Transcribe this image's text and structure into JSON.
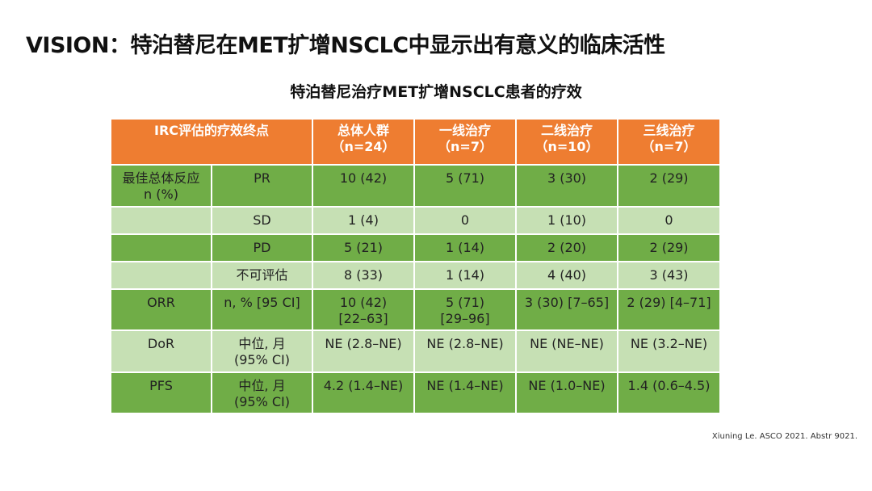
{
  "title": "VISION：特泊替尼在MET扩增NSCLC中显示出有意义的临床活性",
  "table_title": "特泊替尼治疗MET扩增NSCLC患者的疗效",
  "header": {
    "endpoint": "IRC评估的疗效终点",
    "columns": [
      {
        "line1": "总体人群",
        "line2": "（n=24）"
      },
      {
        "line1": "一线治疗",
        "line2": "（n=7）"
      },
      {
        "line1": "二线治疗",
        "line2": "（n=10）"
      },
      {
        "line1": "三线治疗",
        "line2": "（n=7）"
      }
    ]
  },
  "rows": [
    {
      "group_line1": "最佳总体反应",
      "group_line2": "n (%)",
      "metric_line1": "PR",
      "metric_line2": "",
      "values": [
        [
          "10 (42)",
          ""
        ],
        [
          "5 (71)",
          ""
        ],
        [
          "3 (30)",
          ""
        ],
        [
          "2 (29)",
          ""
        ]
      ]
    },
    {
      "group_line1": "",
      "group_line2": "",
      "metric_line1": "SD",
      "metric_line2": "",
      "values": [
        [
          "1 (4)",
          ""
        ],
        [
          "0",
          ""
        ],
        [
          "1 (10)",
          ""
        ],
        [
          "0",
          ""
        ]
      ]
    },
    {
      "group_line1": "",
      "group_line2": "",
      "metric_line1": "PD",
      "metric_line2": "",
      "values": [
        [
          "5 (21)",
          ""
        ],
        [
          "1 (14)",
          ""
        ],
        [
          "2 (20)",
          ""
        ],
        [
          "2 (29)",
          ""
        ]
      ]
    },
    {
      "group_line1": "",
      "group_line2": "",
      "metric_line1": "不可评估",
      "metric_line2": "",
      "values": [
        [
          "8 (33)",
          ""
        ],
        [
          "1 (14)",
          ""
        ],
        [
          "4 (40)",
          ""
        ],
        [
          "3 (43)",
          ""
        ]
      ]
    },
    {
      "group_line1": "ORR",
      "group_line2": "",
      "metric_line1": "n, % [95 CI]",
      "metric_line2": "",
      "values": [
        [
          "10 (42)",
          "[22–63]"
        ],
        [
          "5 (71)",
          "[29–96]"
        ],
        [
          "3 (30) [7–65]",
          ""
        ],
        [
          "2 (29) [4–71]",
          ""
        ]
      ]
    },
    {
      "group_line1": "DoR",
      "group_line2": "",
      "metric_line1": "中位, 月",
      "metric_line2": "(95% CI)",
      "values": [
        [
          "NE (2.8–NE)",
          ""
        ],
        [
          "NE (2.8–NE)",
          ""
        ],
        [
          "NE (NE–NE)",
          ""
        ],
        [
          "NE (3.2–NE)",
          ""
        ]
      ]
    },
    {
      "group_line1": "PFS",
      "group_line2": "",
      "metric_line1": "中位, 月",
      "metric_line2": "(95% CI)",
      "values": [
        [
          "4.2 (1.4–NE)",
          ""
        ],
        [
          "NE (1.4–NE)",
          ""
        ],
        [
          "NE (1.0–NE)",
          ""
        ],
        [
          "1.4 (0.6–4.5)",
          ""
        ]
      ]
    }
  ],
  "source": "Xiuning Le. ASCO 2021. Abstr 9021.",
  "colors": {
    "header_bg": "#ee7d31",
    "row_dark": "#70ad47",
    "row_light": "#c6e0b4"
  }
}
